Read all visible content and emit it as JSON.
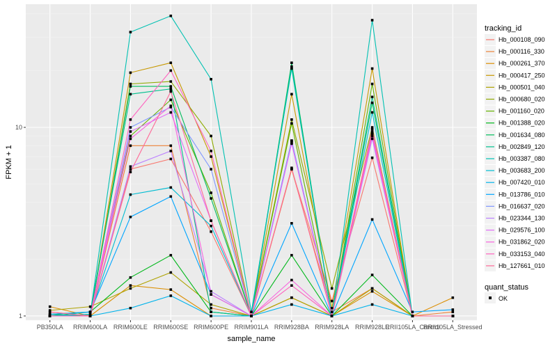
{
  "chart_data": {
    "type": "line",
    "title": "",
    "xlabel": "sample_name",
    "ylabel": "FPKM + 1",
    "y_scale": "log10",
    "ylim": [
      0.95,
      45
    ],
    "y_ticks": [
      1,
      10
    ],
    "grid": true,
    "legend_position": "right",
    "categories": [
      "PB350LA",
      "RRIM600LA",
      "RRIM600LE",
      "RRIM600SE",
      "RRIM600PE",
      "RRIM901LA",
      "RRIM928BA",
      "RRIM928LA",
      "RRIM928LE",
      "RRII105LA_Control",
      "RRII105LA_Stressed"
    ],
    "legend_color": {
      "title": "tracking_id",
      "series_names": [
        "Hb_000108_090",
        "Hb_000116_330",
        "Hb_000261_370",
        "Hb_000417_250",
        "Hb_000501_040",
        "Hb_000680_020",
        "Hb_001160_020",
        "Hb_001388_020",
        "Hb_001634_080",
        "Hb_002849_120",
        "Hb_003387_080",
        "Hb_003683_200",
        "Hb_007420_010",
        "Hb_013786_010",
        "Hb_016637_020",
        "Hb_023344_130",
        "Hb_029576_100",
        "Hb_031862_020",
        "Hb_033153_040",
        "Hb_127661_010"
      ]
    },
    "legend_shape": {
      "title": "quant_status",
      "label": "OK"
    },
    "series": [
      {
        "name": "Hb_000108_090",
        "color": "#F8766D",
        "values": [
          1.05,
          1.0,
          6.0,
          6.8,
          2.8,
          1.0,
          6.0,
          1.2,
          6.9,
          1.0,
          1.0
        ]
      },
      {
        "name": "Hb_000116_330",
        "color": "#EC8239",
        "values": [
          1.02,
          1.0,
          8.0,
          8.0,
          1.1,
          1.0,
          6.0,
          1.05,
          1.4,
          1.0,
          1.05
        ]
      },
      {
        "name": "Hb_000261_370",
        "color": "#DB8E00",
        "values": [
          1.12,
          1.0,
          1.45,
          1.38,
          1.0,
          1.0,
          1.25,
          1.0,
          1.35,
          1.0,
          1.25
        ]
      },
      {
        "name": "Hb_000417_250",
        "color": "#C79800",
        "values": [
          1.0,
          1.0,
          19.5,
          22.0,
          7.0,
          1.0,
          15.0,
          1.1,
          20.5,
          1.0,
          1.0
        ]
      },
      {
        "name": "Hb_000501_040",
        "color": "#AEA200",
        "values": [
          1.07,
          1.12,
          1.4,
          1.7,
          1.15,
          1.0,
          1.25,
          1.0,
          1.4,
          1.0,
          1.0
        ]
      },
      {
        "name": "Hb_000680_020",
        "color": "#8FAA00",
        "values": [
          1.0,
          1.0,
          17.0,
          17.5,
          9.0,
          1.0,
          11.0,
          1.4,
          10.0,
          1.0,
          1.0
        ]
      },
      {
        "name": "Hb_001160_020",
        "color": "#64B200",
        "values": [
          1.0,
          1.0,
          9.0,
          14.0,
          4.5,
          1.0,
          10.5,
          1.0,
          17.0,
          1.0,
          1.0
        ]
      },
      {
        "name": "Hb_001388_020",
        "color": "#00B81B",
        "values": [
          1.02,
          1.05,
          1.6,
          2.1,
          1.05,
          1.0,
          2.1,
          1.0,
          1.65,
          1.0,
          1.0
        ]
      },
      {
        "name": "Hb_001634_080",
        "color": "#00BD5C",
        "values": [
          1.02,
          1.0,
          16.5,
          16.5,
          4.2,
          1.0,
          22.0,
          1.0,
          13.5,
          1.0,
          1.0
        ]
      },
      {
        "name": "Hb_002849_120",
        "color": "#00C08E",
        "values": [
          1.0,
          1.05,
          15.0,
          16.0,
          1.05,
          1.0,
          21.0,
          1.0,
          14.5,
          1.0,
          1.0
        ]
      },
      {
        "name": "Hb_003387_080",
        "color": "#00C1B2",
        "values": [
          1.0,
          1.02,
          32.0,
          39.0,
          18.0,
          1.05,
          20.5,
          1.0,
          37.0,
          1.0,
          1.0
        ]
      },
      {
        "name": "Hb_003683_200",
        "color": "#00BCD1",
        "values": [
          1.0,
          1.02,
          4.4,
          4.8,
          3.0,
          1.0,
          8.5,
          1.0,
          12.0,
          1.0,
          1.0
        ]
      },
      {
        "name": "Hb_007420_010",
        "color": "#00B3EB",
        "values": [
          1.0,
          1.0,
          1.1,
          1.28,
          1.0,
          1.0,
          1.15,
          1.0,
          1.15,
          1.0,
          1.0
        ]
      },
      {
        "name": "Hb_013786_010",
        "color": "#00A5FF",
        "values": [
          1.02,
          1.05,
          3.35,
          4.3,
          1.3,
          1.0,
          3.1,
          1.0,
          3.25,
          1.05,
          1.08
        ]
      },
      {
        "name": "Hb_016637_020",
        "color": "#7F96FF",
        "values": [
          1.0,
          1.0,
          10.0,
          12.8,
          6.0,
          1.0,
          8.5,
          1.0,
          9.5,
          1.0,
          1.0
        ]
      },
      {
        "name": "Hb_023344_130",
        "color": "#BC81FF",
        "values": [
          1.0,
          1.0,
          6.2,
          7.5,
          1.35,
          1.0,
          8.3,
          1.0,
          8.7,
          1.0,
          1.0
        ]
      },
      {
        "name": "Hb_029576_100",
        "color": "#E26EF7",
        "values": [
          1.0,
          1.0,
          9.5,
          12.0,
          3.2,
          1.0,
          8.2,
          1.0,
          9.2,
          1.0,
          1.0
        ]
      },
      {
        "name": "Hb_031862_020",
        "color": "#F863DF",
        "values": [
          1.0,
          1.0,
          8.7,
          13.0,
          1.3,
          1.0,
          1.55,
          1.0,
          9.0,
          1.0,
          1.0
        ]
      },
      {
        "name": "Hb_033153_040",
        "color": "#FF62BF",
        "values": [
          1.0,
          1.0,
          11.0,
          20.0,
          7.5,
          1.0,
          1.45,
          1.0,
          9.3,
          1.0,
          1.0
        ]
      },
      {
        "name": "Hb_127661_010",
        "color": "#FF6A98",
        "values": [
          1.05,
          1.0,
          5.8,
          15.5,
          3.2,
          1.0,
          6.1,
          1.0,
          9.8,
          1.0,
          1.0
        ]
      }
    ]
  }
}
